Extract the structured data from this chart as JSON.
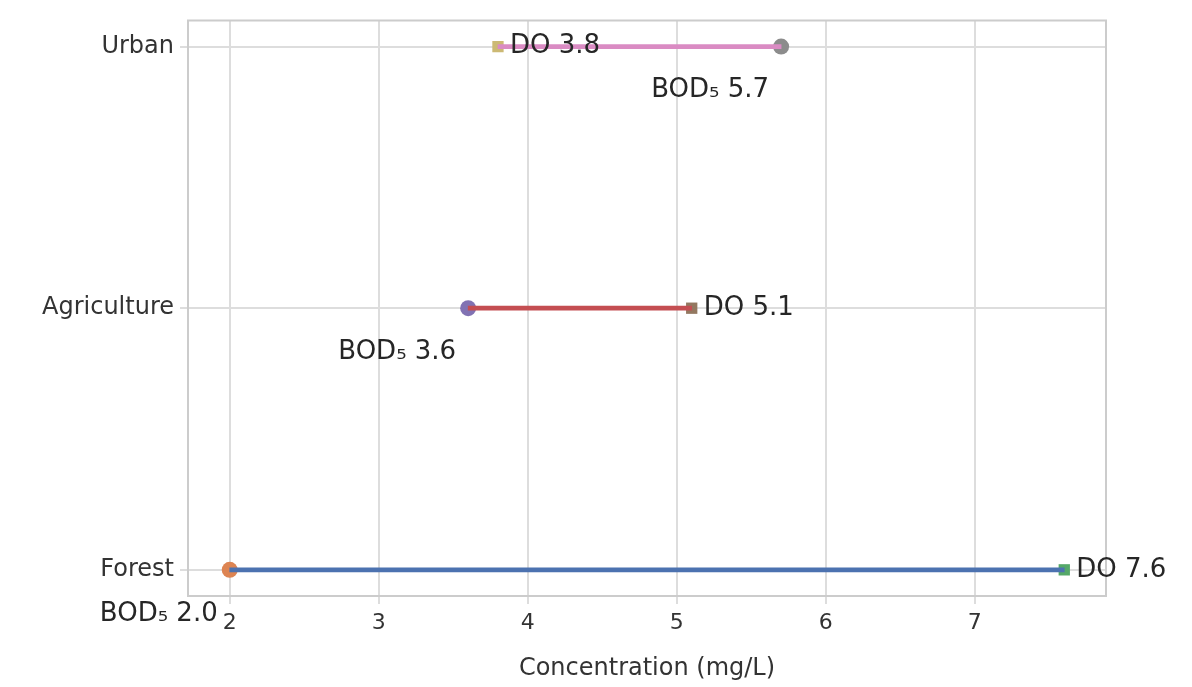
{
  "chart_data": {
    "type": "bar",
    "orientation": "horizontal",
    "categories": [
      "Urban",
      "Agriculture",
      "Forest"
    ],
    "xlabel": "Concentration (mg/L)",
    "xlim": [
      1.72,
      7.88
    ],
    "xticks": [
      2,
      3,
      4,
      5,
      6,
      7
    ],
    "grid": true,
    "series": [
      {
        "base": [
          3.8,
          3.6,
          2.0
        ],
        "values": [
          1.9,
          1.5,
          5.6
        ],
        "colors": [
          "#da8bc3",
          "#c44e52",
          "#4c72b0"
        ]
      },
      {
        "type": "scatter",
        "values": [
          5.7,
          3.6,
          2.0
        ],
        "colors": [
          "#8c8c8c",
          "#8172b3",
          "#dd8452"
        ],
        "marker": "circle",
        "value_labels": [
          "BOD₅ 5.7",
          "BOD₅ 3.6",
          "BOD₅ 2.0"
        ]
      },
      {
        "type": "scatter",
        "values": [
          3.8,
          5.1,
          7.6
        ],
        "colors": [
          "#ccb974",
          "#937860",
          "#55a868"
        ],
        "marker": "square",
        "value_labels": [
          "DO 3.8",
          "DO 5.1",
          "DO 7.6"
        ]
      }
    ]
  }
}
